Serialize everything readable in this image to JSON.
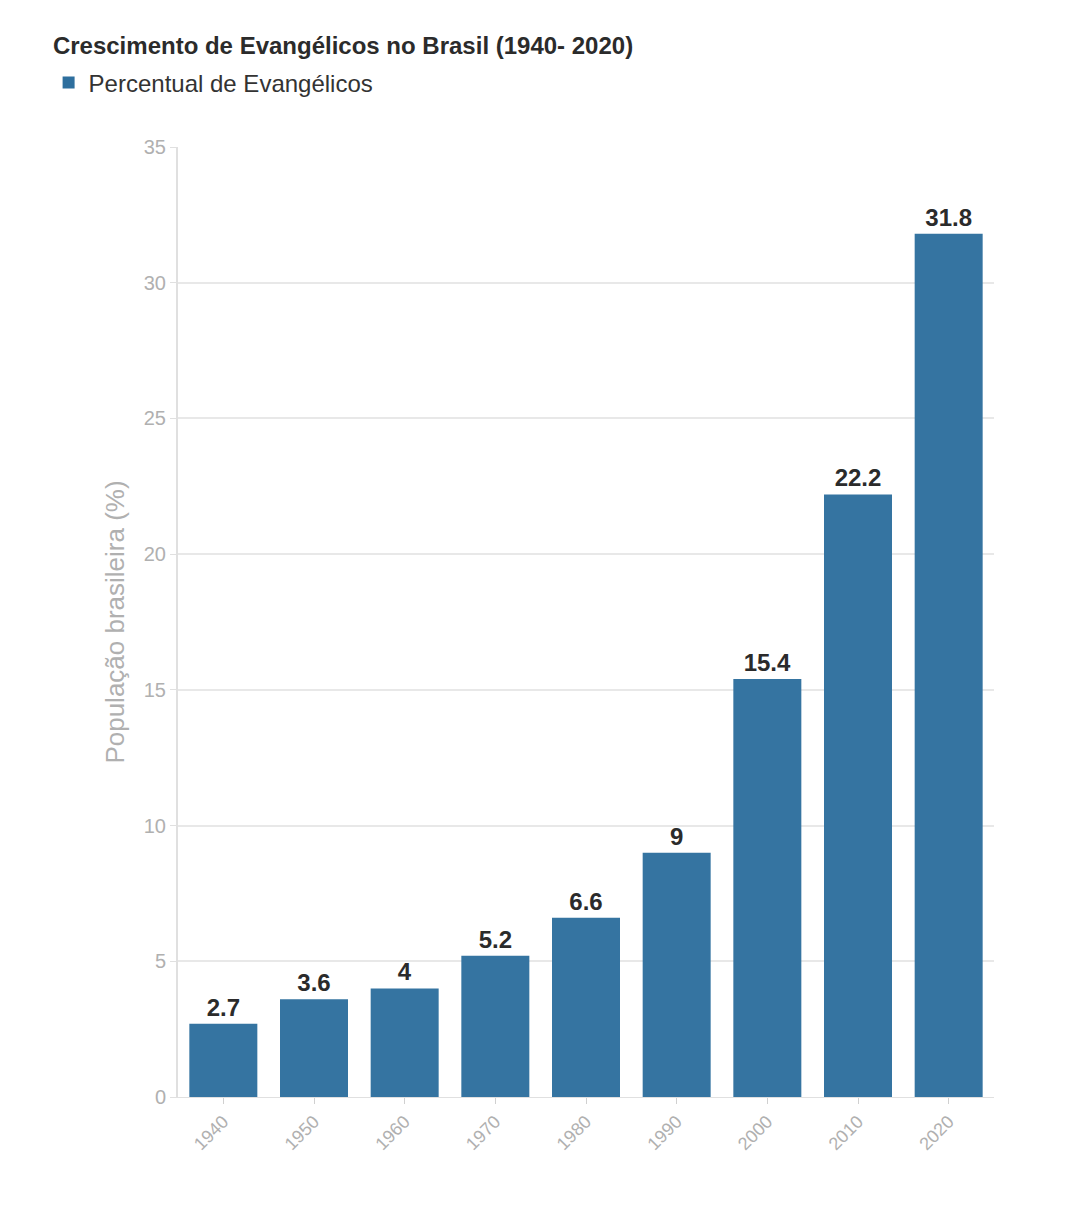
{
  "chart_data": {
    "type": "bar",
    "title": "Crescimento de Evangélicos no Brasil (1940- 2020)",
    "y_label": "População brasileira (%)",
    "categories": [
      "1940",
      "1950",
      "1960",
      "1970",
      "1980",
      "1990",
      "2000",
      "2010",
      "2020"
    ],
    "series": [
      {
        "name": "Percentual de Evangélicos",
        "color": "#2e6f9e",
        "values": [
          2.7,
          3.6,
          4,
          5.2,
          6.6,
          9,
          15.4,
          22.2,
          31.8
        ]
      }
    ],
    "ylim": [
      0,
      35
    ],
    "yticks": [
      0,
      5,
      10,
      15,
      20,
      25,
      30,
      35
    ],
    "grid": true,
    "legend": "top-left",
    "data_labels": true
  }
}
